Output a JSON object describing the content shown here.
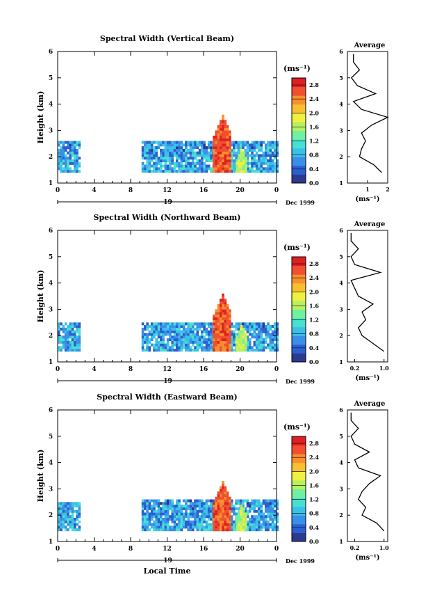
{
  "chart_data": [
    {
      "type": "heatmap",
      "title": "Spectral Width (Vertical Beam)",
      "xlabel": "",
      "ylabel": "Height (km)",
      "xlim": [
        0,
        24
      ],
      "ylim": [
        1,
        6
      ],
      "xticks": [
        "0",
        "4",
        "8",
        "12",
        "16",
        "20",
        "0"
      ],
      "yticks": [
        "1",
        "2",
        "3",
        "4",
        "5",
        "6"
      ],
      "day_label": "19",
      "date_label": "Dec 1999",
      "colorbar": {
        "unit": "(ms⁻¹)",
        "range": [
          0,
          3.0
        ],
        "ticks": [
          "0.0",
          "0.4",
          "0.8",
          "1.2",
          "1.6",
          "2.0",
          "2.4",
          "2.8"
        ]
      },
      "blocks": [
        {
          "t": [
            0,
            2.3
          ],
          "h": [
            1.4,
            2.6
          ],
          "level": 0.8
        },
        {
          "t": [
            9.2,
            24
          ],
          "h": [
            1.4,
            2.6
          ],
          "level": 0.8
        }
      ],
      "spikes": [
        {
          "t": [
            17.0,
            19.0
          ],
          "h": [
            1.4,
            3.6
          ],
          "level": 2.6
        },
        {
          "t": [
            19.5,
            20.6
          ],
          "h": [
            1.4,
            2.3
          ],
          "level": 1.6
        }
      ],
      "average_profile": {
        "title": "Average",
        "xlabel": "(ms⁻¹)",
        "xticks": [
          "1",
          "2"
        ],
        "xlim": [
          0,
          2
        ],
        "height": [
          1.4,
          1.7,
          2.0,
          2.3,
          2.6,
          2.9,
          3.2,
          3.5,
          3.8,
          4.1,
          4.4,
          4.7,
          5.0,
          5.3,
          5.6,
          5.9
        ],
        "value": [
          1.7,
          1.3,
          0.6,
          0.7,
          0.9,
          0.7,
          1.2,
          2.0,
          0.7,
          0.3,
          1.4,
          0.5,
          0.2,
          0.6,
          0.3,
          0.3
        ]
      }
    },
    {
      "type": "heatmap",
      "title": "Spectral Width (Northward Beam)",
      "xlabel": "",
      "ylabel": "Height (km)",
      "xlim": [
        0,
        24
      ],
      "ylim": [
        1,
        6
      ],
      "xticks": [
        "0",
        "4",
        "8",
        "12",
        "16",
        "20",
        "0"
      ],
      "yticks": [
        "1",
        "2",
        "3",
        "4",
        "5",
        "6"
      ],
      "day_label": "19",
      "date_label": "Dec 1999",
      "colorbar": {
        "unit": "(ms⁻¹)",
        "range": [
          0,
          3.0
        ],
        "ticks": [
          "0.0",
          "0.4",
          "0.8",
          "1.2",
          "1.6",
          "2.0",
          "2.4",
          "2.8"
        ]
      },
      "blocks": [
        {
          "t": [
            0,
            2.3
          ],
          "h": [
            1.4,
            2.5
          ],
          "level": 0.8
        },
        {
          "t": [
            9.2,
            24
          ],
          "h": [
            1.4,
            2.5
          ],
          "level": 0.8
        }
      ],
      "spikes": [
        {
          "t": [
            17.0,
            19.0
          ],
          "h": [
            1.4,
            3.6
          ],
          "level": 2.6
        },
        {
          "t": [
            19.5,
            20.6
          ],
          "h": [
            1.4,
            2.4
          ],
          "level": 1.6
        }
      ],
      "average_profile": {
        "title": "Average",
        "xlabel": "(ms⁻¹)",
        "xticks": [
          "0.2",
          "1.0"
        ],
        "xlim": [
          0,
          1.1
        ],
        "height": [
          1.4,
          1.7,
          2.0,
          2.3,
          2.6,
          2.9,
          3.2,
          3.5,
          3.8,
          4.1,
          4.4,
          4.7,
          5.0,
          5.3,
          5.6,
          5.9
        ],
        "value": [
          1.0,
          0.7,
          0.4,
          0.3,
          0.5,
          0.4,
          0.7,
          0.3,
          0.2,
          0.1,
          0.9,
          0.2,
          0.1,
          0.3,
          0.1,
          0.1
        ]
      }
    },
    {
      "type": "heatmap",
      "title": "Spectral Width (Eastward Beam)",
      "xlabel": "Local Time",
      "ylabel": "Height (km)",
      "xlim": [
        0,
        24
      ],
      "ylim": [
        1,
        6
      ],
      "xticks": [
        "0",
        "4",
        "8",
        "12",
        "16",
        "20",
        "0"
      ],
      "yticks": [
        "1",
        "2",
        "3",
        "4",
        "5",
        "6"
      ],
      "day_label": "19",
      "date_label": "Dec 1999",
      "colorbar": {
        "unit": "(ms⁻¹)",
        "range": [
          0,
          3.0
        ],
        "ticks": [
          "0.0",
          "0.4",
          "0.8",
          "1.2",
          "1.6",
          "2.0",
          "2.4",
          "2.8"
        ]
      },
      "blocks": [
        {
          "t": [
            0,
            2.3
          ],
          "h": [
            1.4,
            2.5
          ],
          "level": 0.8
        },
        {
          "t": [
            9.2,
            24
          ],
          "h": [
            1.4,
            2.6
          ],
          "level": 0.8
        }
      ],
      "spikes": [
        {
          "t": [
            17.0,
            19.0
          ],
          "h": [
            1.4,
            3.3
          ],
          "level": 2.6
        },
        {
          "t": [
            19.5,
            20.6
          ],
          "h": [
            1.4,
            2.4
          ],
          "level": 1.6
        }
      ],
      "average_profile": {
        "title": "Average",
        "xlabel": "(ms⁻¹)",
        "xticks": [
          "0.2",
          "1.0"
        ],
        "xlim": [
          0,
          1.1
        ],
        "height": [
          1.4,
          1.7,
          2.0,
          2.3,
          2.6,
          2.9,
          3.2,
          3.5,
          3.8,
          4.1,
          4.4,
          4.7,
          5.0,
          5.3,
          5.6,
          5.9
        ],
        "value": [
          1.0,
          0.8,
          0.4,
          0.5,
          0.3,
          0.4,
          0.6,
          0.9,
          0.3,
          0.2,
          0.6,
          0.2,
          0.1,
          0.3,
          0.1,
          0.1
        ]
      }
    }
  ],
  "colors": {
    "scale": [
      "#2b3a8f",
      "#2b5fd0",
      "#3a8fe8",
      "#3cc0e8",
      "#48e0d0",
      "#70f0a0",
      "#b8f060",
      "#f0f040",
      "#f8c030",
      "#f89030",
      "#f05030",
      "#e02020"
    ]
  }
}
